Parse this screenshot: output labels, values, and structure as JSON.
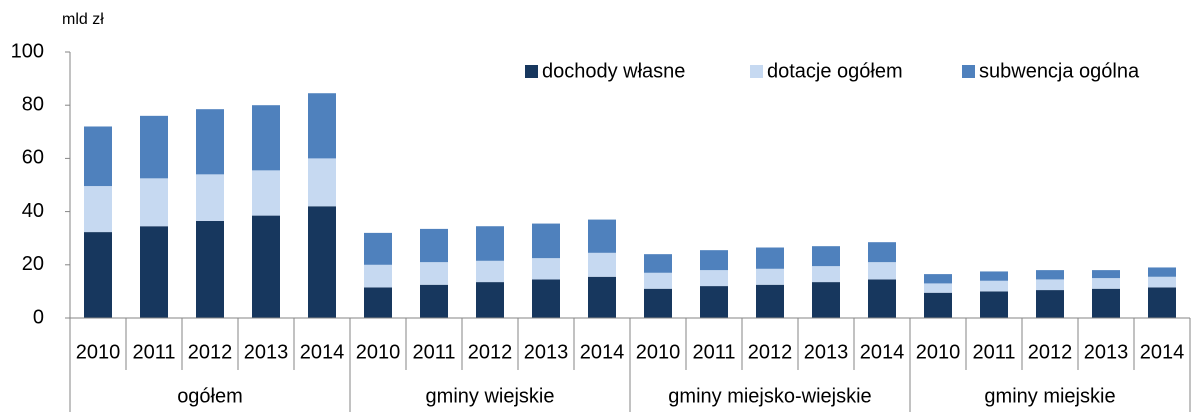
{
  "chart_data": {
    "type": "stacked_bar",
    "y_label": "mld zł",
    "groups": [
      {
        "name": "ogółem",
        "categories": [
          "2010",
          "2011",
          "2012",
          "2013",
          "2014"
        ]
      },
      {
        "name": "gminy wiejskie",
        "categories": [
          "2010",
          "2011",
          "2012",
          "2013",
          "2014"
        ]
      },
      {
        "name": "gminy miejsko-wiejskie",
        "categories": [
          "2010",
          "2011",
          "2012",
          "2013",
          "2014"
        ]
      },
      {
        "name": "gminy miejskie",
        "categories": [
          "2010",
          "2011",
          "2012",
          "2013",
          "2014"
        ]
      }
    ],
    "series": [
      {
        "name": "dochody własne",
        "color": "#17375e",
        "values": [
          32.3,
          34.5,
          36.5,
          38.5,
          42,
          11.5,
          12.5,
          13.5,
          14.5,
          15.5,
          11,
          12,
          12.5,
          13.5,
          14.5,
          9.5,
          10,
          10.5,
          11,
          11.5
        ]
      },
      {
        "name": "dotacje ogółem",
        "color": "#c6d9f1",
        "values": [
          17.3,
          18,
          17.5,
          17,
          18,
          8.5,
          8.5,
          8,
          8,
          9,
          6,
          6,
          6,
          6,
          6.5,
          3.5,
          4,
          4,
          4,
          4
        ]
      },
      {
        "name": "subwencja ogólna",
        "color": "#4f81bd",
        "values": [
          22.4,
          23.5,
          24.5,
          24.5,
          24.5,
          12,
          12.5,
          13,
          13,
          12.5,
          7,
          7.5,
          8,
          7.5,
          7.5,
          3.5,
          3.5,
          3.5,
          3,
          3.5
        ]
      }
    ],
    "ylim": [
      0,
      100
    ],
    "yticks": [
      0,
      20,
      40,
      60,
      80,
      100
    ],
    "legend": "top-right"
  }
}
